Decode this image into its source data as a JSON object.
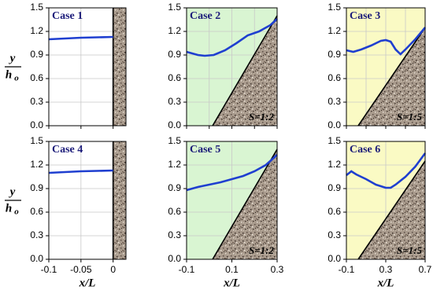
{
  "chart_data": [
    {
      "type": "line",
      "title": "Case 1",
      "y_label": "y",
      "y_label_den": "h",
      "y_label_den_sub": "o",
      "x": [
        -0.1,
        -0.075,
        -0.05,
        -0.025,
        0
      ],
      "values": [
        1.1,
        1.11,
        1.12,
        1.125,
        1.13
      ],
      "color": "#1f3fd0",
      "xlim": [
        -0.1,
        0.02
      ],
      "ylim": [
        0,
        1.5
      ],
      "xticks": [
        -0.1,
        -0.05,
        0
      ],
      "xtick_labels": false,
      "yticks": [
        {
          "value": 0,
          "label": "0.0"
        },
        0.3,
        0.6,
        0.9,
        1.2,
        1.5
      ],
      "grid": true,
      "background": "#ffffff",
      "bed": {
        "x": [
          0,
          0
        ],
        "y": [
          0,
          1.5
        ]
      }
    },
    {
      "type": "line",
      "title": "Case 2",
      "annotation": "S=1:2",
      "x": [
        -0.1,
        -0.05,
        -0.02,
        0.02,
        0.07,
        0.12,
        0.17,
        0.22,
        0.27,
        0.3
      ],
      "values": [
        0.94,
        0.9,
        0.89,
        0.9,
        0.96,
        1.05,
        1.15,
        1.2,
        1.28,
        1.36
      ],
      "color": "#1f3fd0",
      "xlim": [
        -0.1,
        0.3
      ],
      "ylim": [
        0,
        1.5
      ],
      "xticks": [
        -0.1,
        0,
        0.1,
        0.2,
        0.3
      ],
      "xtick_labels": false,
      "yticks": [
        {
          "value": 0,
          "label": "0.0"
        },
        0.3,
        0.6,
        0.9,
        1.2,
        1.5
      ],
      "grid": true,
      "background": "#d9f5d2",
      "bed": {
        "x": [
          0.015,
          0.3
        ],
        "y": [
          0,
          1.4
        ]
      }
    },
    {
      "type": "line",
      "title": "Case 3",
      "annotation": "S=1:5",
      "x": [
        -0.1,
        -0.03,
        0.05,
        0.15,
        0.25,
        0.3,
        0.35,
        0.4,
        0.45,
        0.5,
        0.6,
        0.7
      ],
      "values": [
        0.96,
        0.94,
        0.97,
        1.02,
        1.08,
        1.09,
        1.07,
        0.97,
        0.91,
        0.97,
        1.1,
        1.25
      ],
      "color": "#1f3fd0",
      "xlim": [
        -0.1,
        0.7
      ],
      "ylim": [
        0,
        1.5
      ],
      "xticks": [
        -0.1,
        0.1,
        0.3,
        0.5,
        0.7
      ],
      "xtick_labels": false,
      "yticks": [
        {
          "value": 0,
          "label": "0.0"
        },
        0.3,
        0.6,
        0.9,
        1.2,
        1.5
      ],
      "grid": true,
      "background": "#fafac4",
      "bed": {
        "x": [
          0.02,
          0.7
        ],
        "y": [
          0,
          1.25
        ]
      }
    },
    {
      "type": "line",
      "title": "Case 4",
      "y_label": "y",
      "y_label_den": "h",
      "y_label_den_sub": "o",
      "x_label": "x/L",
      "x": [
        -0.1,
        -0.075,
        -0.05,
        -0.025,
        0
      ],
      "values": [
        1.1,
        1.11,
        1.12,
        1.125,
        1.13
      ],
      "color": "#1f3fd0",
      "xlim": [
        -0.1,
        0.02
      ],
      "ylim": [
        0,
        1.5
      ],
      "xticks": [
        -0.1,
        -0.05,
        0
      ],
      "xtick_labels": true,
      "yticks": [
        {
          "value": 0,
          "label": "0.0"
        },
        0.3,
        0.6,
        0.9,
        1.2,
        1.5
      ],
      "grid": true,
      "background": "#ffffff",
      "bed": {
        "x": [
          0,
          0
        ],
        "y": [
          0,
          1.5
        ]
      }
    },
    {
      "type": "line",
      "title": "Case 5",
      "annotation": "S=1:2",
      "x_label": "x/L",
      "x": [
        -0.1,
        -0.05,
        0,
        0.05,
        0.1,
        0.15,
        0.2,
        0.25,
        0.3
      ],
      "values": [
        0.88,
        0.92,
        0.95,
        0.98,
        1.02,
        1.06,
        1.12,
        1.2,
        1.33
      ],
      "color": "#1f3fd0",
      "xlim": [
        -0.1,
        0.3
      ],
      "ylim": [
        0,
        1.5
      ],
      "xticks": [
        -0.1,
        0.1,
        0.3
      ],
      "xtick_labels": true,
      "yticks": [
        {
          "value": 0,
          "label": "0.0"
        },
        0.3,
        0.6,
        0.9,
        1.2,
        1.5
      ],
      "grid": true,
      "background": "#d9f5d2",
      "bed": {
        "x": [
          0.015,
          0.3
        ],
        "y": [
          0,
          1.4
        ]
      }
    },
    {
      "type": "line",
      "title": "Case 6",
      "annotation": "S=1:5",
      "x_label": "x/L",
      "x": [
        -0.1,
        -0.05,
        0,
        0.1,
        0.2,
        0.3,
        0.35,
        0.4,
        0.5,
        0.6,
        0.7
      ],
      "values": [
        1.07,
        1.12,
        1.08,
        1.02,
        0.95,
        0.91,
        0.91,
        0.95,
        1.05,
        1.18,
        1.35
      ],
      "color": "#1f3fd0",
      "xlim": [
        -0.1,
        0.7
      ],
      "ylim": [
        0,
        1.5
      ],
      "xticks": [
        -0.1,
        0.3,
        0.7
      ],
      "xtick_labels": true,
      "yticks": [
        {
          "value": 0,
          "label": "0.0"
        },
        0.3,
        0.6,
        0.9,
        1.2,
        1.5
      ],
      "grid": true,
      "background": "#fafac4",
      "bed": {
        "x": [
          0.02,
          0.7
        ],
        "y": [
          0,
          1.25
        ]
      }
    }
  ]
}
